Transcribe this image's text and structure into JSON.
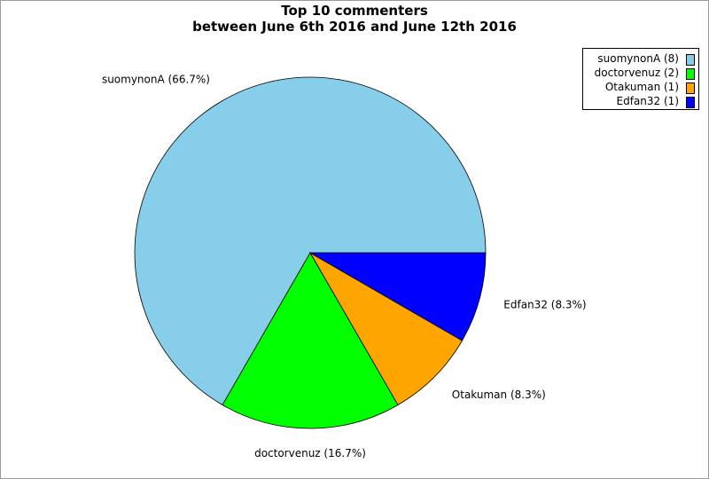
{
  "chart_data": {
    "type": "pie",
    "title": "Top 10 commenters",
    "subtitle": "between June 6th 2016 and June 12th 2016",
    "slices": [
      {
        "label": "suomynonA",
        "value": 8,
        "percent_label": "suomynonA (66.7%)",
        "legend_label": "suomynonA (8)",
        "color": "#87ceeb"
      },
      {
        "label": "doctorvenuz",
        "value": 2,
        "percent_label": "doctorvenuz (16.7%)",
        "legend_label": "doctorvenuz (2)",
        "color": "#00ff00"
      },
      {
        "label": "Otakuman",
        "value": 1,
        "percent_label": "Otakuman (8.3%)",
        "legend_label": "Otakuman (1)",
        "color": "#ffa500"
      },
      {
        "label": "Edfan32",
        "value": 1,
        "percent_label": "Edfan32 (8.3%)",
        "legend_label": "Edfan32 (1)",
        "color": "#0000ff"
      }
    ],
    "legend_position": "top-right"
  }
}
